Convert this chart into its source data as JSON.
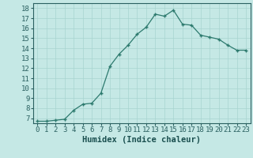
{
  "x": [
    0,
    1,
    2,
    3,
    4,
    5,
    6,
    7,
    8,
    9,
    10,
    11,
    12,
    13,
    14,
    15,
    16,
    17,
    18,
    19,
    20,
    21,
    22,
    23
  ],
  "y": [
    6.7,
    6.7,
    6.8,
    6.9,
    7.8,
    8.4,
    8.5,
    9.5,
    12.2,
    13.4,
    14.3,
    15.4,
    16.1,
    17.4,
    17.2,
    17.8,
    16.4,
    16.3,
    15.3,
    15.1,
    14.9,
    14.3,
    13.8,
    13.8
  ],
  "line_color": "#2d7a6e",
  "marker": "+",
  "bg_color": "#c5e8e5",
  "grid_color": "#a8d4d0",
  "tick_color": "#2a6060",
  "xlabel": "Humidex (Indice chaleur)",
  "xlabel_color": "#1a4f4f",
  "ylim": [
    6.5,
    18.5
  ],
  "xlim": [
    -0.5,
    23.5
  ],
  "yticks": [
    7,
    8,
    9,
    10,
    11,
    12,
    13,
    14,
    15,
    16,
    17,
    18
  ],
  "xticks": [
    0,
    1,
    2,
    3,
    4,
    5,
    6,
    7,
    8,
    9,
    10,
    11,
    12,
    13,
    14,
    15,
    16,
    17,
    18,
    19,
    20,
    21,
    22,
    23
  ],
  "font_size": 6.5,
  "xlabel_fontsize": 7.5
}
